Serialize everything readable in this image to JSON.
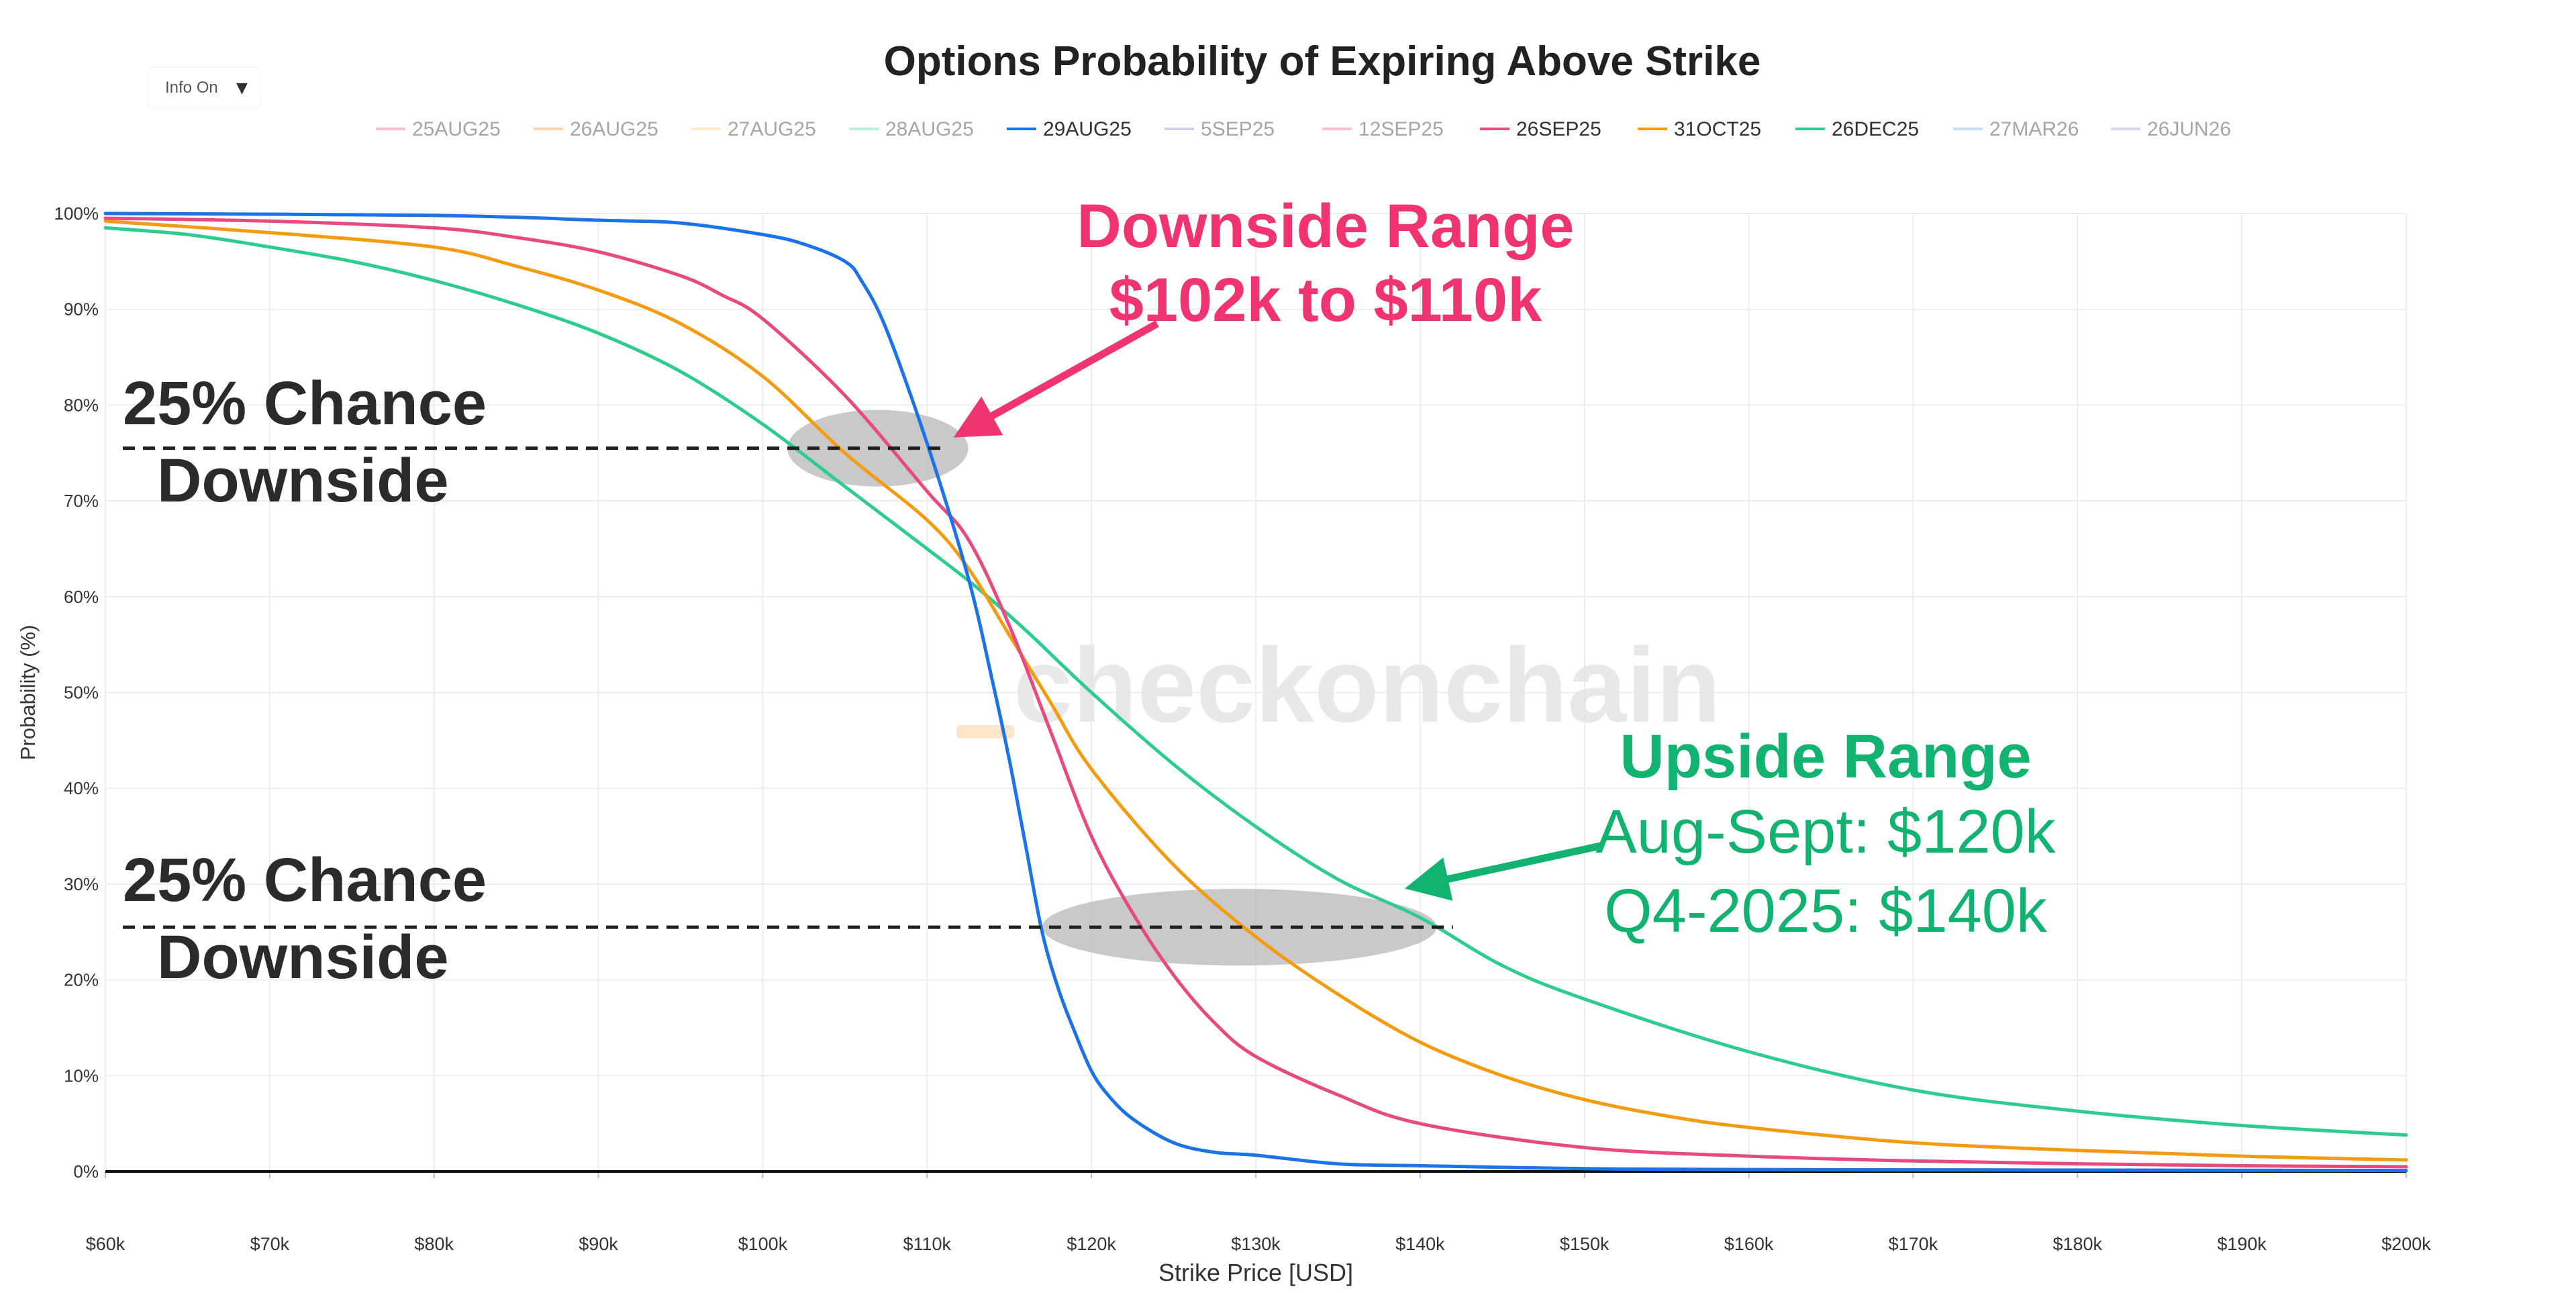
{
  "title": "Options Probability of Expiring Above Strike",
  "info_button": {
    "label": "Info On",
    "caret": "▼"
  },
  "watermark": "checkonchain",
  "annotations": {
    "downside_left_top": [
      "25% Chance",
      "Downside"
    ],
    "downside_left_bottom": [
      "25% Chance",
      "Downside"
    ],
    "downside_range": [
      "Downside Range",
      "$102k to $110k"
    ],
    "upside_range": [
      "Upside Range",
      "Aug-Sept: $120k",
      "Q4-2025: $140k"
    ]
  },
  "colors": {
    "pink_annotation": "#f0346f",
    "green_annotation": "#12b370",
    "dark_text": "#2b2b2b",
    "grid": "#ededed"
  },
  "chart_data": {
    "type": "line",
    "title": "Options Probability of Expiring Above Strike",
    "xlabel": "Strike Price [USD]",
    "ylabel": "Probability (%)",
    "xlim": [
      60000,
      200000
    ],
    "ylim": [
      0,
      100
    ],
    "x_ticks": [
      60000,
      70000,
      80000,
      90000,
      100000,
      110000,
      120000,
      130000,
      140000,
      150000,
      160000,
      170000,
      180000,
      190000,
      200000
    ],
    "x_tick_labels": [
      "$60k",
      "$70k",
      "$80k",
      "$90k",
      "$100k",
      "$110k",
      "$120k",
      "$130k",
      "$140k",
      "$150k",
      "$160k",
      "$170k",
      "$180k",
      "$190k",
      "$200k"
    ],
    "y_ticks": [
      0,
      10,
      20,
      30,
      40,
      50,
      60,
      70,
      80,
      90,
      100
    ],
    "y_tick_labels": [
      "0%",
      "10%",
      "20%",
      "30%",
      "40%",
      "50%",
      "60%",
      "70%",
      "80%",
      "90%",
      "100%"
    ],
    "grid": true,
    "legend_position": "top",
    "legend": [
      {
        "name": "25AUG25",
        "color": "#f48fb1",
        "visible": false
      },
      {
        "name": "26AUG25",
        "color": "#f6b26b",
        "visible": false
      },
      {
        "name": "27AUG25",
        "color": "#ffd89b",
        "visible": false
      },
      {
        "name": "28AUG25",
        "color": "#7ee6b8",
        "visible": false
      },
      {
        "name": "29AUG25",
        "color": "#1a73e8",
        "visible": true
      },
      {
        "name": "5SEP25",
        "color": "#b39ddb",
        "visible": false
      },
      {
        "name": "12SEP25",
        "color": "#f48fb1",
        "visible": false
      },
      {
        "name": "26SEP25",
        "color": "#e84a7f",
        "visible": true
      },
      {
        "name": "31OCT25",
        "color": "#f39c12",
        "visible": true
      },
      {
        "name": "26DEC25",
        "color": "#2ecc8f",
        "visible": true
      },
      {
        "name": "27MAR26",
        "color": "#90caf9",
        "visible": false
      },
      {
        "name": "26JUN26",
        "color": "#c5b3e6",
        "visible": false
      }
    ],
    "series": [
      {
        "name": "29AUG25",
        "color": "#1a73e8",
        "x": [
          60000,
          80000,
          90000,
          95000,
          100000,
          102500,
          105000,
          106000,
          107500,
          110000,
          112500,
          114000,
          115000,
          116000,
          117000,
          118000,
          119000,
          120000,
          121000,
          122500,
          125000,
          127500,
          130000,
          135000,
          140000,
          150000,
          160000,
          200000
        ],
        "y": [
          100,
          99.8,
          99.3,
          99.0,
          97.8,
          96.8,
          95.0,
          93.0,
          88.0,
          76.0,
          62.0,
          51.0,
          43.0,
          34.0,
          25.0,
          19.0,
          14.5,
          10.5,
          8.0,
          5.5,
          3.0,
          2.0,
          1.7,
          0.8,
          0.6,
          0.3,
          0.2,
          0.1
        ]
      },
      {
        "name": "26SEP25",
        "color": "#e84a7f",
        "x": [
          60000,
          70000,
          80000,
          85000,
          90000,
          95000,
          97500,
          100000,
          105000,
          110000,
          112500,
          115000,
          117500,
          120000,
          122500,
          125000,
          127500,
          130000,
          135000,
          140000,
          150000,
          160000,
          170000,
          180000,
          190000,
          200000
        ],
        "y": [
          99.5,
          99.2,
          98.5,
          97.5,
          96.0,
          93.5,
          91.5,
          89.0,
          81.0,
          71.0,
          66.0,
          57.0,
          46.0,
          35.0,
          27.0,
          20.5,
          15.5,
          12.0,
          8.0,
          5.0,
          2.5,
          1.6,
          1.1,
          0.8,
          0.6,
          0.5
        ]
      },
      {
        "name": "31OCT25",
        "color": "#f39c12",
        "x": [
          60000,
          70000,
          80000,
          85000,
          90000,
          95000,
          100000,
          105000,
          110000,
          112500,
          115000,
          117500,
          120000,
          125000,
          130000,
          135000,
          140000,
          145000,
          150000,
          155000,
          160000,
          170000,
          180000,
          190000,
          200000
        ],
        "y": [
          99.2,
          98.0,
          96.5,
          94.5,
          92.0,
          88.5,
          83.0,
          75.0,
          68.0,
          63.0,
          56.0,
          49.0,
          42.0,
          32.0,
          24.5,
          18.5,
          13.5,
          10.0,
          7.5,
          5.8,
          4.6,
          3.0,
          2.2,
          1.6,
          1.2
        ]
      },
      {
        "name": "26DEC25",
        "color": "#2ecc8f",
        "x": [
          60000,
          65000,
          70000,
          75000,
          80000,
          85000,
          90000,
          95000,
          100000,
          105000,
          110000,
          113000,
          116000,
          120000,
          125000,
          130000,
          135000,
          140000,
          145000,
          150000,
          160000,
          170000,
          180000,
          190000,
          200000
        ],
        "y": [
          98.5,
          97.8,
          96.5,
          95.0,
          93.0,
          90.5,
          87.5,
          83.5,
          78.0,
          71.5,
          65.0,
          61.0,
          56.5,
          50.0,
          42.5,
          36.0,
          30.5,
          26.5,
          21.5,
          18.0,
          12.5,
          8.5,
          6.3,
          4.8,
          3.8
        ]
      }
    ],
    "reference_lines": [
      {
        "label": "25% Chance Downside",
        "y": 75.5,
        "x_from": 60000,
        "x_to": 111000,
        "style": "dashed"
      },
      {
        "label": "25% Chance Downside",
        "y": 25.5,
        "x_from": 60000,
        "x_to": 142000,
        "style": "dashed"
      }
    ],
    "highlight_ellipses": [
      {
        "center_x": 107000,
        "center_y": 75.5,
        "x_radius": 5500,
        "y_radius": 4.0
      },
      {
        "center_x": 129000,
        "center_y": 25.5,
        "x_radius": 12000,
        "y_radius": 4.0
      }
    ],
    "arrows": [
      {
        "label": "Downside Range",
        "from_x": 124000,
        "from_y": 88.5,
        "to_x": 112000,
        "to_y": 77.0
      },
      {
        "label": "Upside Range",
        "from_x": 151000,
        "from_y": 34.0,
        "to_x": 139500,
        "to_y": 29.7
      }
    ]
  }
}
